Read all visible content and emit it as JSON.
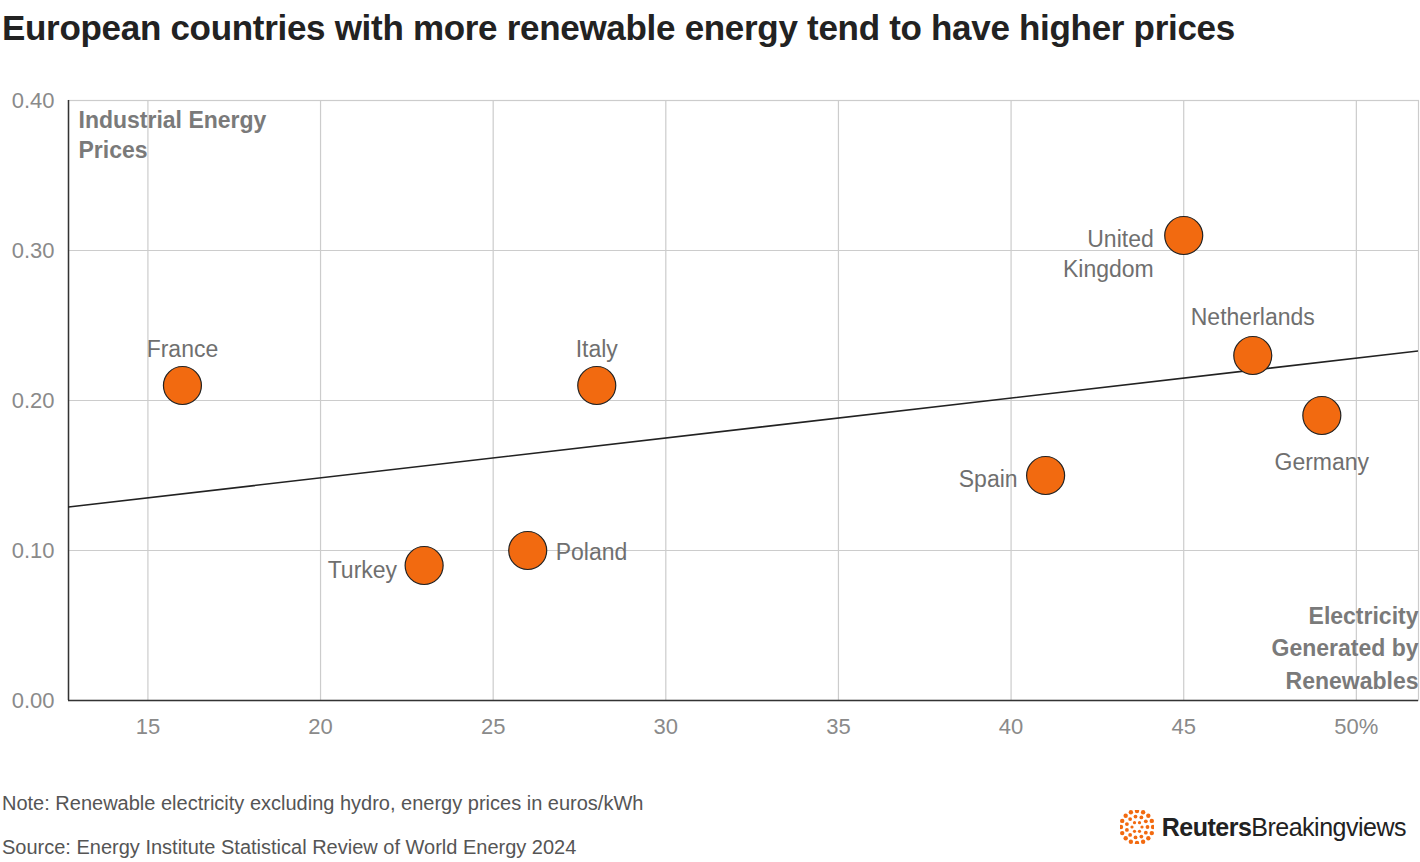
{
  "chart_data": {
    "type": "scatter",
    "title": "European countries with more renewable energy tend to have higher prices",
    "y_label": "Industrial Energy\nPrices",
    "x_label": "Electricity\nGenerated by\nRenewables",
    "note": "Note: Renewable electricity excluding hydro, energy prices in euros/kWh",
    "source": "Source: Energy Institute Statistical Review of World Energy 2024",
    "credit": "Reuters Breakingviews",
    "categories": [
      "France",
      "Italy",
      "Turkey",
      "Poland",
      "Spain",
      "United\nKingdom",
      "Netherlands",
      "Germany"
    ],
    "x": [
      16,
      28,
      23,
      26,
      41,
      45,
      47,
      49
    ],
    "values": [
      0.21,
      0.21,
      0.09,
      0.1,
      0.15,
      0.31,
      0.23,
      0.19
    ],
    "color": "#f26a10",
    "marker": "circle",
    "trend_line": {
      "x": [
        12.7,
        51.8
      ],
      "values": [
        0.129,
        0.233
      ],
      "color": "#222222",
      "line_style": "solid"
    },
    "xlim": [
      12.7,
      51.8
    ],
    "xticks": [
      15,
      20,
      25,
      30,
      35,
      40,
      45,
      {
        "value": 50,
        "label": "50%"
      }
    ],
    "ylim": [
      0,
      0.4
    ],
    "yticks": [
      {
        "value": 0,
        "label": "0.00"
      },
      {
        "value": 0.1,
        "label": "0.10"
      },
      {
        "value": 0.2,
        "label": "0.20"
      },
      {
        "value": 0.3,
        "label": "0.30"
      },
      {
        "value": 0.4,
        "label": "0.40"
      }
    ],
    "grid": true
  }
}
